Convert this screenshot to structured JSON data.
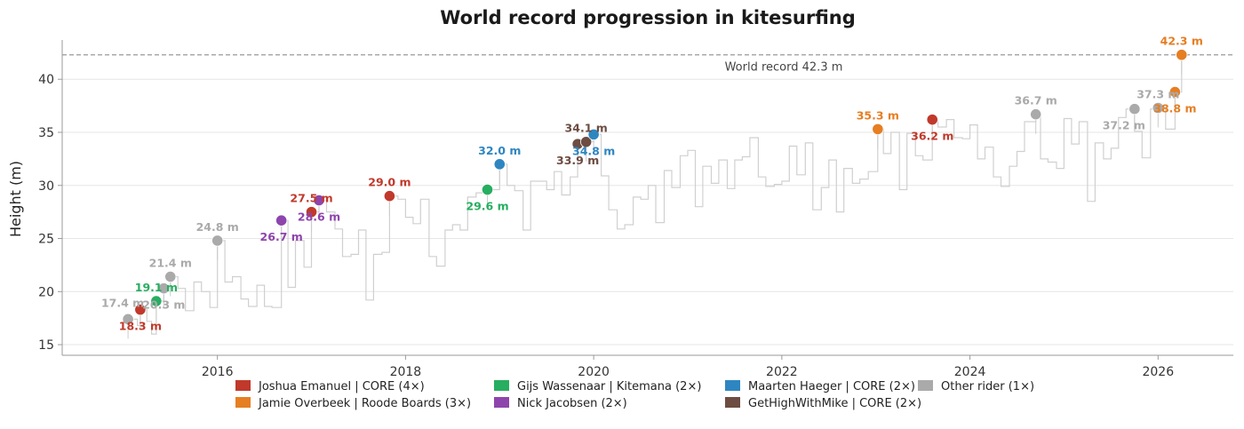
{
  "chart_data": {
    "type": "scatter",
    "title": "World record progression in kitesurfing",
    "ylabel": "Height (m)",
    "xlim": [
      2014.35,
      2026.8
    ],
    "ylim": [
      14.0,
      43.7
    ],
    "x_ticks": [
      2016,
      2018,
      2020,
      2022,
      2024,
      2026
    ],
    "y_ticks": [
      15,
      20,
      25,
      30,
      35,
      40
    ],
    "grid": "horizontal",
    "world_record": {
      "value": 42.3,
      "label": "World record  42.3 m"
    },
    "legend": {
      "placement": "bottom"
    },
    "riders": [
      {
        "name": "Joshua Emanuel | CORE (4×)",
        "color": "#c0392b"
      },
      {
        "name": "Jamie Overbeek | Roode Boards (3×)",
        "color": "#e67e22"
      },
      {
        "name": "Gijs Wassenaar | Kitemana (2×)",
        "color": "#27ae60"
      },
      {
        "name": "Nick Jacobsen (2×)",
        "color": "#8e44ad"
      },
      {
        "name": "Maarten Haeger | CORE (2×)",
        "color": "#2e86c1"
      },
      {
        "name": "GetHighWithMike | CORE (2×)",
        "color": "#6d4c41"
      },
      {
        "name": "Other rider (1×)",
        "color": "#aaaaaa"
      }
    ],
    "records": [
      {
        "x": 2015.05,
        "y": 17.4,
        "rider": 6,
        "label": "17.4 m",
        "pos": "above-left"
      },
      {
        "x": 2015.18,
        "y": 18.3,
        "rider": 0,
        "label": "18.3 m",
        "pos": "below"
      },
      {
        "x": 2015.35,
        "y": 19.1,
        "rider": 2,
        "label": "19.1 m",
        "pos": "above"
      },
      {
        "x": 2015.43,
        "y": 20.3,
        "rider": 6,
        "label": "20.3 m",
        "pos": "below"
      },
      {
        "x": 2015.5,
        "y": 21.4,
        "rider": 6,
        "label": "21.4 m",
        "pos": "above"
      },
      {
        "x": 2016.0,
        "y": 24.8,
        "rider": 6,
        "label": "24.8 m",
        "pos": "above"
      },
      {
        "x": 2016.68,
        "y": 26.7,
        "rider": 3,
        "label": "26.7 m",
        "pos": "below"
      },
      {
        "x": 2017.0,
        "y": 27.5,
        "rider": 0,
        "label": "27.5 m",
        "pos": "above"
      },
      {
        "x": 2017.08,
        "y": 28.6,
        "rider": 3,
        "label": "28.6 m",
        "pos": "below"
      },
      {
        "x": 2017.83,
        "y": 29.0,
        "rider": 0,
        "label": "29.0 m",
        "pos": "above"
      },
      {
        "x": 2018.87,
        "y": 29.6,
        "rider": 2,
        "label": "29.6 m",
        "pos": "below"
      },
      {
        "x": 2019.0,
        "y": 32.0,
        "rider": 4,
        "label": "32.0 m",
        "pos": "above"
      },
      {
        "x": 2019.83,
        "y": 33.9,
        "rider": 5,
        "label": "33.9 m",
        "pos": "below"
      },
      {
        "x": 2019.92,
        "y": 34.1,
        "rider": 5,
        "label": "34.1 m",
        "pos": "above"
      },
      {
        "x": 2020.0,
        "y": 34.8,
        "rider": 4,
        "label": "34.8 m",
        "pos": "below"
      },
      {
        "x": 2023.02,
        "y": 35.3,
        "rider": 1,
        "label": "35.3 m",
        "pos": "above"
      },
      {
        "x": 2023.6,
        "y": 36.2,
        "rider": 0,
        "label": "36.2 m",
        "pos": "below"
      },
      {
        "x": 2024.7,
        "y": 36.7,
        "rider": 6,
        "label": "36.7 m",
        "pos": "above"
      },
      {
        "x": 2025.75,
        "y": 37.2,
        "rider": 6,
        "label": "37.2 m",
        "pos": "below-left"
      },
      {
        "x": 2026.0,
        "y": 37.3,
        "rider": 6,
        "label": "37.3 m",
        "pos": "above"
      },
      {
        "x": 2026.18,
        "y": 38.8,
        "rider": 1,
        "label": "38.8 m",
        "pos": "below"
      },
      {
        "x": 2026.25,
        "y": 42.3,
        "rider": 1,
        "label": "42.3 m",
        "pos": "above"
      }
    ],
    "background_line": {
      "style": "step",
      "color": "#d0d0d0",
      "x": [
        2015.05,
        2015.15,
        2015.18,
        2015.25,
        2015.3,
        2015.35,
        2015.43,
        2015.5,
        2015.58,
        2015.66,
        2015.75,
        2015.83,
        2015.92,
        2016.0,
        2016.08,
        2016.16,
        2016.25,
        2016.33,
        2016.42,
        2016.5,
        2016.58,
        2016.68,
        2016.75,
        2016.83,
        2016.92,
        2017.0,
        2017.08,
        2017.16,
        2017.25,
        2017.33,
        2017.42,
        2017.5,
        2017.58,
        2017.66,
        2017.75,
        2017.83,
        2017.92,
        2018.0,
        2018.08,
        2018.16,
        2018.25,
        2018.33,
        2018.42,
        2018.5,
        2018.58,
        2018.66,
        2018.75,
        2018.87,
        2019.0,
        2019.08,
        2019.16,
        2019.25,
        2019.33,
        2019.5,
        2019.58,
        2019.66,
        2019.75,
        2019.83,
        2019.92,
        2020.0,
        2020.08,
        2020.16,
        2020.25,
        2020.33,
        2020.42,
        2020.5,
        2020.58,
        2020.66,
        2020.75,
        2020.83,
        2020.92,
        2021.0,
        2021.08,
        2021.16,
        2021.25,
        2021.33,
        2021.42,
        2021.5,
        2021.58,
        2021.66,
        2021.75,
        2021.83,
        2021.92,
        2022.0,
        2022.08,
        2022.16,
        2022.25,
        2022.33,
        2022.42,
        2022.5,
        2022.58,
        2022.66,
        2022.75,
        2022.83,
        2022.92,
        2023.02,
        2023.08,
        2023.16,
        2023.25,
        2023.33,
        2023.42,
        2023.5,
        2023.6,
        2023.66,
        2023.75,
        2023.83,
        2023.92,
        2024.0,
        2024.08,
        2024.16,
        2024.25,
        2024.33,
        2024.42,
        2024.5,
        2024.58,
        2024.7,
        2024.75,
        2024.83,
        2024.92,
        2025.0,
        2025.08,
        2025.16,
        2025.25,
        2025.33,
        2025.42,
        2025.5,
        2025.58,
        2025.66,
        2025.75,
        2025.83,
        2025.92,
        2026.0,
        2026.08,
        2026.18,
        2026.25
      ],
      "y": [
        17.4,
        16.8,
        18.3,
        17.2,
        16.0,
        19.1,
        20.3,
        21.4,
        20.3,
        18.2,
        20.9,
        20.0,
        18.5,
        24.8,
        20.9,
        21.4,
        19.3,
        18.6,
        20.6,
        18.6,
        18.5,
        26.7,
        20.4,
        24.8,
        22.3,
        27.5,
        28.6,
        27.5,
        25.9,
        23.3,
        23.5,
        25.8,
        19.2,
        23.5,
        23.7,
        29.0,
        28.7,
        27.0,
        26.4,
        28.7,
        23.3,
        22.4,
        25.8,
        26.3,
        25.8,
        28.9,
        29.3,
        29.6,
        32.0,
        30.0,
        29.5,
        25.8,
        30.4,
        29.6,
        31.3,
        29.1,
        30.8,
        33.9,
        34.1,
        34.8,
        30.9,
        27.7,
        25.9,
        26.3,
        28.9,
        28.7,
        30.0,
        26.5,
        31.4,
        29.8,
        32.8,
        33.3,
        28.0,
        31.8,
        30.2,
        32.4,
        29.7,
        32.4,
        32.7,
        34.5,
        30.8,
        29.9,
        30.1,
        30.4,
        33.7,
        31.0,
        34.0,
        27.7,
        29.8,
        32.4,
        27.5,
        31.6,
        30.2,
        30.6,
        31.3,
        35.3,
        33.0,
        35.0,
        29.6,
        34.9,
        32.8,
        32.4,
        36.2,
        35.5,
        36.2,
        34.5,
        34.4,
        35.7,
        32.5,
        33.6,
        30.8,
        29.9,
        31.8,
        33.2,
        36.0,
        36.7,
        32.5,
        32.2,
        31.6,
        36.3,
        33.9,
        36.0,
        28.5,
        34.0,
        32.5,
        33.5,
        36.4,
        37.2,
        35.1,
        32.6,
        37.2,
        37.3,
        35.3,
        38.8,
        42.3
      ]
    }
  }
}
